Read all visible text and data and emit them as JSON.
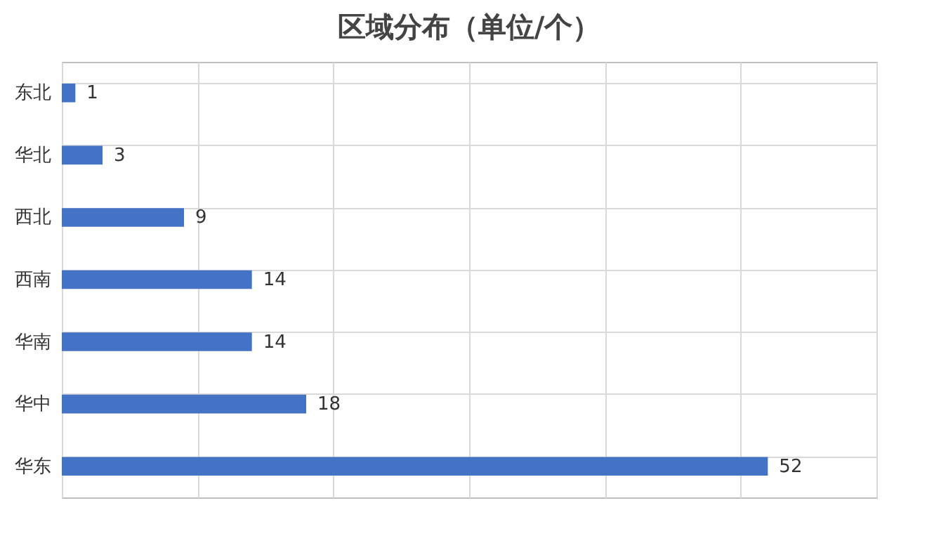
{
  "chart_data": {
    "type": "bar",
    "title": "区域分布（单位/个）",
    "orientation": "horizontal",
    "categories": [
      "东北",
      "华北",
      "西北",
      "西南",
      "华南",
      "华中",
      "华东"
    ],
    "values": [
      1,
      3,
      9,
      14,
      14,
      18,
      52
    ],
    "color": "#4472c4",
    "xlim": [
      0,
      60
    ],
    "xticks": [
      0,
      10,
      20,
      30,
      40,
      50,
      60
    ],
    "grid": true,
    "data_labels": true,
    "tick_labels": "y"
  }
}
